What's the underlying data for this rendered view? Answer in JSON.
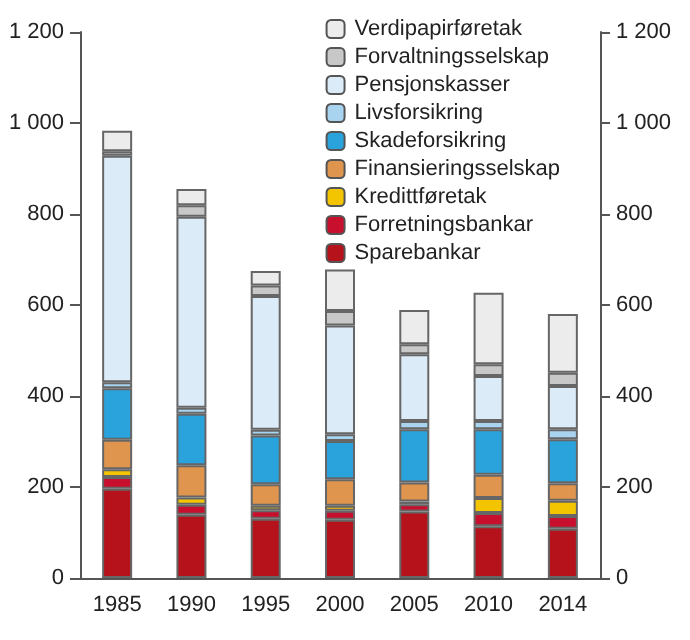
{
  "chart_data": {
    "type": "bar",
    "stacked": true,
    "categories": [
      "1985",
      "1990",
      "1995",
      "2000",
      "2005",
      "2010",
      "2014"
    ],
    "series": [
      {
        "name": "Sparebankar",
        "color": "#b5121b",
        "values": [
          196,
          139,
          130,
          128,
          146,
          114,
          108
        ]
      },
      {
        "name": "Forretningsbankar",
        "color": "#c8102e",
        "values": [
          26,
          22,
          19,
          20,
          16,
          29,
          28
        ]
      },
      {
        "name": "Kredittføretak",
        "color": "#f2c500",
        "values": [
          17,
          16,
          10,
          11,
          6,
          33,
          34
        ]
      },
      {
        "name": "Finansieringsselskap",
        "color": "#e0954f",
        "values": [
          65,
          71,
          47,
          58,
          42,
          51,
          38
        ]
      },
      {
        "name": "Skadeforsikring",
        "color": "#2aa3dc",
        "values": [
          113,
          113,
          107,
          84,
          117,
          100,
          97
        ]
      },
      {
        "name": "Livsforsikring",
        "color": "#a9d4f0",
        "values": [
          13,
          13,
          13,
          15,
          18,
          18,
          22
        ]
      },
      {
        "name": "Pensjonskasser",
        "color": "#dcebf8",
        "values": [
          498,
          420,
          294,
          239,
          147,
          99,
          95
        ]
      },
      {
        "name": "Forvaltningsselskap",
        "color": "#c8c8c8",
        "values": [
          10,
          25,
          23,
          32,
          22,
          26,
          29
        ]
      },
      {
        "name": "Verdipapirføretak",
        "color": "#ececec",
        "values": [
          45,
          36,
          32,
          91,
          75,
          157,
          129
        ]
      }
    ],
    "ylim": [
      0,
      1200
    ],
    "yticks": [
      0,
      200,
      400,
      600,
      800,
      {
        "value": 1000,
        "label": "1 000"
      },
      {
        "value": 1200,
        "label": "1 200"
      }
    ],
    "y2lim": [
      0,
      1200
    ],
    "y2ticks": [
      0,
      200,
      400,
      600,
      800,
      {
        "value": 1000,
        "label": "1 000"
      },
      {
        "value": 1200,
        "label": "1 200"
      }
    ],
    "grid": false,
    "legend": "top right"
  }
}
